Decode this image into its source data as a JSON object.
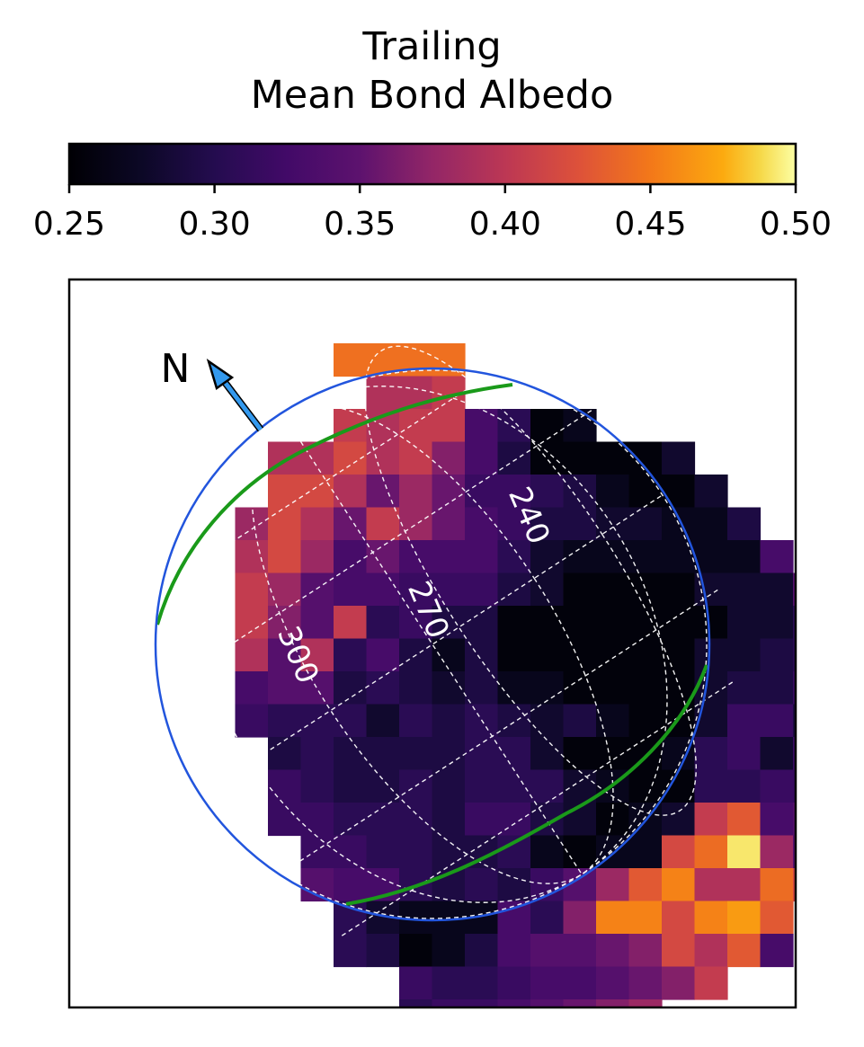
{
  "chart_data": {
    "type": "heatmap",
    "title": "Trailing",
    "subtitle": "Mean Bond Albedo",
    "colorbar": {
      "colormap": "inferno",
      "range": [
        0.25,
        0.5
      ],
      "orientation": "horizontal",
      "position": "top",
      "ticks": [
        "0.25",
        "0.30",
        "0.35",
        "0.40",
        "0.45",
        "0.50"
      ]
    },
    "compass_label": "N",
    "longitude_labels": [
      "240",
      "270",
      "300"
    ],
    "grid": false,
    "axis_ticks": false,
    "colors": {
      "disk_outline": "#2255dd",
      "terminator": "#1a9a1a",
      "arrow": "#3399ee",
      "graticule": "#ffffff"
    },
    "grid_rows": [
      "......0000..............",
      ".......LLM..............",
      "......MLMMGEAB..........",
      "....LLNLMJGDAAAAC.......",
      "....NNLIKIFFEDBAAC......",
      "...KNLIMKIGFDDCCBBD.....",
      "...LNKGIGGGECBBBBBBG....",
      "...MKHGGFFFDCAAAACCCH...",
      "...MJHMEFDDAAAAAAACCE...",
      "...LHLEGDBDAAAAAACCDEF..",
      "...GHHDEDCDBBAAAACDDFF..",
      "...FEEECEDEDCDBAACFFDH..",
      "....DEDDDDEECAAABEFCFG..",
      "....FEDDEDEEECBAAEEFFG..",
      "....FFEEEDFFDCABCMOGHM..",
      ".....FFEEDDEBABBNPTKHN..",
      ".....HGGEDEDFHKOQLLPNL..",
      "......ECBBBGEJQQNQRO....",
      "......EDABDGHHIJNLOG....",
      "........FEEFGGHIJM......",
      "........EFFGHIJK........"
    ],
    "grid_levels": "Letters A..T map to albedo 0.255 + 0.0125*index (A=0.255, T=0.49); '0' = white/off-disk high; '.' = no data"
  }
}
